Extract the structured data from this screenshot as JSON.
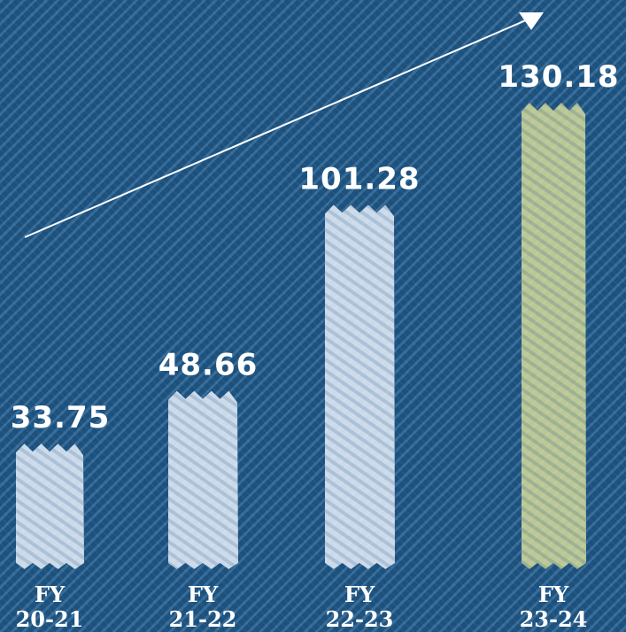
{
  "chart_data": {
    "type": "bar",
    "categories": [
      [
        "FY",
        "20-21"
      ],
      [
        "FY",
        "21-22"
      ],
      [
        "FY",
        "22-23"
      ],
      [
        "FY",
        "23-24"
      ]
    ],
    "values": [
      33.75,
      48.66,
      101.28,
      130.18
    ],
    "value_labels": [
      "33.75",
      "48.66",
      "101.28",
      "130.18"
    ],
    "ylim": [
      0,
      130.18
    ],
    "grid": false,
    "colors": {
      "background": "#1f5a8c",
      "bar": "#dfe9f5",
      "highlight_bar": "#d6dc9a",
      "text": "#ffffff",
      "trend_arrow": "#ffffff"
    },
    "highlight_index": 3,
    "trend_arrow": true
  }
}
